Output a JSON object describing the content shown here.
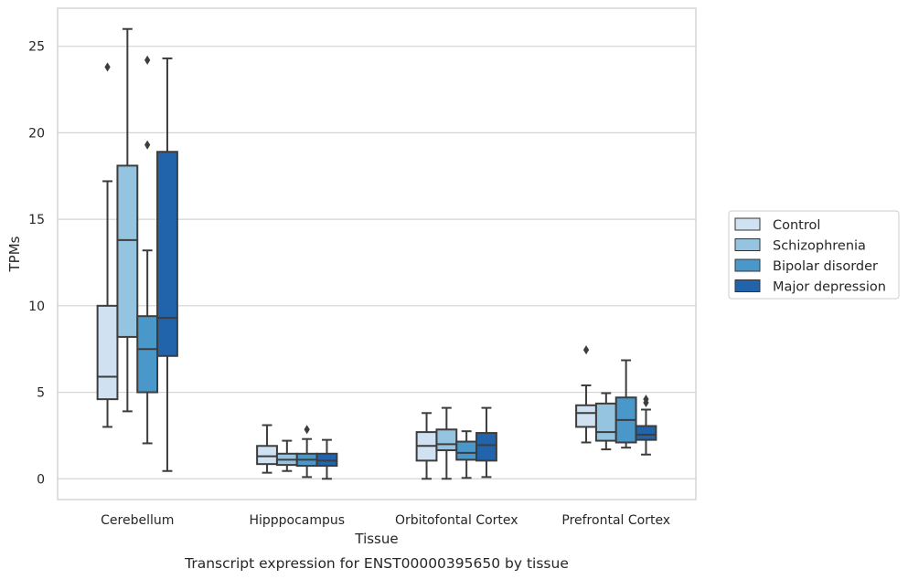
{
  "caption": "Transcript expression for ENST00000395650 by tissue",
  "chart_data": {
    "type": "boxplot",
    "title": "",
    "xlabel": "Tissue",
    "ylabel": "TPMs",
    "categories": [
      "Cerebellum",
      "Hipppocampus",
      "Orbitofontal Cortex",
      "Prefrontal Cortex"
    ],
    "ylim": [
      -1.2,
      27.2
    ],
    "yticks": [
      0,
      5,
      10,
      15,
      20,
      25
    ],
    "grid": "horizontal",
    "legend_position": "right",
    "series": [
      {
        "name": "Control",
        "color": "#d0e1f2",
        "boxes": [
          {
            "whislo": 3.0,
            "q1": 4.6,
            "med": 5.9,
            "q3": 10.0,
            "whishi": 17.2,
            "fliers": [
              23.8
            ]
          },
          {
            "whislo": 0.35,
            "q1": 0.85,
            "med": 1.3,
            "q3": 1.9,
            "whishi": 3.1,
            "fliers": []
          },
          {
            "whislo": 0.0,
            "q1": 1.05,
            "med": 1.9,
            "q3": 2.7,
            "whishi": 3.8,
            "fliers": []
          },
          {
            "whislo": 2.1,
            "q1": 3.0,
            "med": 3.8,
            "q3": 4.25,
            "whishi": 5.4,
            "fliers": [
              7.45
            ]
          }
        ]
      },
      {
        "name": "Schizophrenia",
        "color": "#94c4df",
        "boxes": [
          {
            "whislo": 3.9,
            "q1": 8.2,
            "med": 13.8,
            "q3": 18.1,
            "whishi": 26.0,
            "fliers": []
          },
          {
            "whislo": 0.45,
            "q1": 0.8,
            "med": 1.1,
            "q3": 1.45,
            "whishi": 2.2,
            "fliers": []
          },
          {
            "whislo": 0.0,
            "q1": 1.65,
            "med": 2.0,
            "q3": 2.85,
            "whishi": 4.1,
            "fliers": []
          },
          {
            "whislo": 1.7,
            "q1": 2.2,
            "med": 2.7,
            "q3": 4.35,
            "whishi": 4.95,
            "fliers": []
          }
        ]
      },
      {
        "name": "Bipolar disorder",
        "color": "#4a98c9",
        "boxes": [
          {
            "whislo": 2.05,
            "q1": 5.0,
            "med": 7.5,
            "q3": 9.4,
            "whishi": 13.2,
            "fliers": [
              19.3,
              24.2
            ]
          },
          {
            "whislo": 0.1,
            "q1": 0.75,
            "med": 1.1,
            "q3": 1.45,
            "whishi": 2.3,
            "fliers": [
              2.85
            ]
          },
          {
            "whislo": 0.05,
            "q1": 1.1,
            "med": 1.5,
            "q3": 2.15,
            "whishi": 2.75,
            "fliers": []
          },
          {
            "whislo": 1.8,
            "q1": 2.1,
            "med": 3.4,
            "q3": 4.7,
            "whishi": 6.85,
            "fliers": []
          }
        ]
      },
      {
        "name": "Major depression",
        "color": "#2164ab",
        "boxes": [
          {
            "whislo": 0.45,
            "q1": 7.1,
            "med": 9.3,
            "q3": 18.9,
            "whishi": 24.3,
            "fliers": []
          },
          {
            "whislo": 0.0,
            "q1": 0.75,
            "med": 1.05,
            "q3": 1.45,
            "whishi": 2.25,
            "fliers": []
          },
          {
            "whislo": 0.1,
            "q1": 1.05,
            "med": 1.95,
            "q3": 2.65,
            "whishi": 4.1,
            "fliers": []
          },
          {
            "whislo": 1.4,
            "q1": 2.25,
            "med": 2.55,
            "q3": 3.05,
            "whishi": 4.0,
            "fliers": [
              4.4,
              4.6
            ]
          }
        ]
      }
    ]
  }
}
